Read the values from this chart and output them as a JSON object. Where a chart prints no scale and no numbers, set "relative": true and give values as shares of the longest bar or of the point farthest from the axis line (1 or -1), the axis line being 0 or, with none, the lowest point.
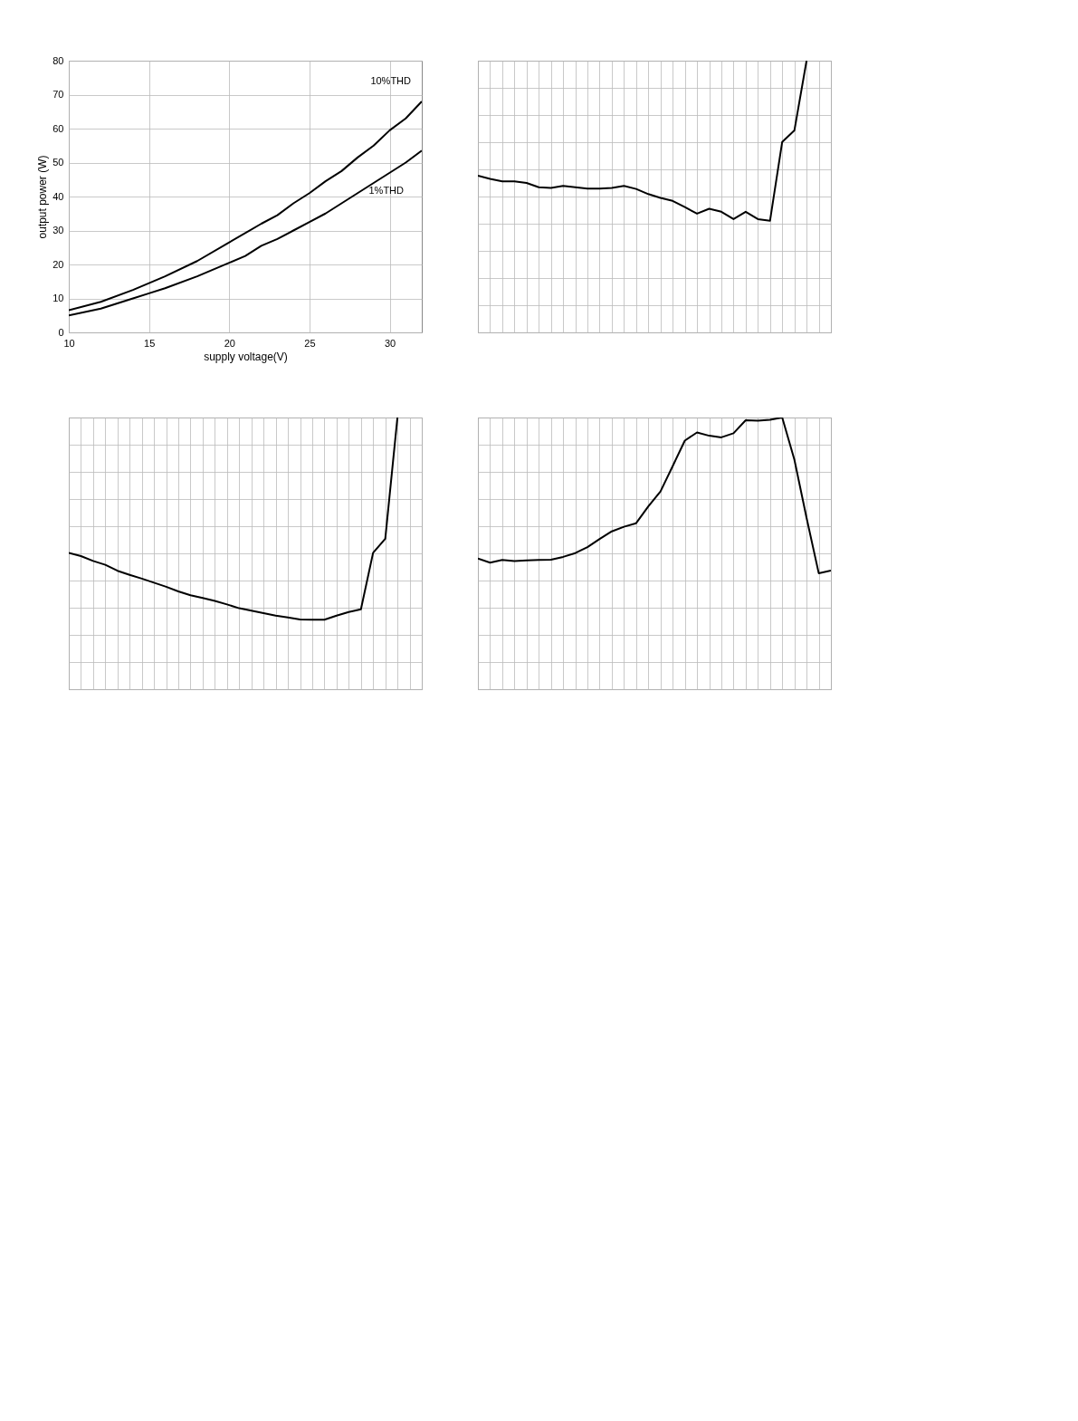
{
  "chart_data": [
    {
      "type": "line",
      "xlabel": "supply voltage(V)",
      "ylabel": "output power (W)",
      "x": [
        10,
        12,
        14,
        15,
        16,
        18,
        20,
        22,
        23,
        24,
        25,
        26,
        27,
        28,
        29,
        30,
        31,
        32
      ],
      "xlim": [
        10,
        32
      ],
      "xticks": [
        10,
        15,
        20,
        25,
        30
      ],
      "ylim": [
        0,
        80
      ],
      "yticks": [
        0,
        10,
        20,
        30,
        40,
        50,
        60,
        70,
        80
      ],
      "grid": true,
      "legend": false,
      "line_style": "solid",
      "marker": "none",
      "series": [
        {
          "name": "10%THD",
          "color": "#000000",
          "values": [
            6.5,
            9,
            12.5,
            14.5,
            16.5,
            21,
            26.5,
            32,
            34.5,
            38,
            41,
            44.5,
            47.5,
            51.5,
            55,
            59.5,
            63,
            68
          ]
        },
        {
          "name": "1%THD",
          "color": "#000000",
          "x": [
            10,
            12,
            14,
            15,
            16,
            18,
            20,
            21,
            22,
            23,
            24,
            25,
            26,
            27,
            28,
            29,
            30,
            31,
            32
          ],
          "values": [
            5,
            7,
            10,
            11.5,
            13,
            16.5,
            20.5,
            22.5,
            25.5,
            27.5,
            30,
            32.5,
            35,
            38,
            41,
            44,
            47,
            50,
            53.5
          ]
        }
      ]
    },
    {
      "type": "line",
      "relative": true,
      "grid": true,
      "tick_labels": false,
      "legend": false,
      "line_style": "solid",
      "marker": "none",
      "categories": [
        null,
        null,
        null,
        null,
        null,
        null,
        null,
        null,
        null,
        null,
        null,
        null,
        null,
        null,
        null,
        null,
        null,
        null,
        null,
        null,
        null,
        null,
        null,
        null,
        null,
        null,
        null,
        null,
        null,
        null
      ],
      "series": [
        {
          "color": "#000000",
          "values": [
            0.577,
            0.565,
            0.556,
            0.556,
            0.55,
            0.534,
            0.532,
            0.539,
            0.534,
            0.529,
            0.529,
            0.532,
            0.539,
            0.528,
            0.509,
            0.495,
            0.484,
            0.461,
            0.437,
            0.455,
            0.444,
            0.417,
            0.444,
            0.417,
            0.411,
            0.701,
            0.743,
            1,
            null,
            null
          ]
        }
      ]
    },
    {
      "type": "line",
      "relative": true,
      "grid": true,
      "tick_labels": false,
      "legend": false,
      "line_style": "solid",
      "marker": "none",
      "categories": [
        null,
        null,
        null,
        null,
        null,
        null,
        null,
        null,
        null,
        null,
        null,
        null,
        null,
        null,
        null,
        null,
        null,
        null,
        null,
        null,
        null,
        null,
        null,
        null,
        null,
        null,
        null,
        null,
        null,
        null
      ],
      "series": [
        {
          "color": "#000000",
          "values": [
            0.502,
            0.49,
            0.472,
            0.458,
            0.436,
            0.421,
            0.407,
            0.392,
            0.377,
            0.36,
            0.346,
            0.336,
            0.325,
            0.312,
            0.298,
            0.289,
            0.28,
            0.271,
            0.264,
            0.257,
            0.256,
            0.256,
            0.271,
            0.284,
            0.294,
            0.502,
            0.554,
            1,
            null,
            null
          ]
        }
      ]
    },
    {
      "type": "line",
      "relative": true,
      "grid": true,
      "tick_labels": false,
      "legend": false,
      "line_style": "solid",
      "marker": "none",
      "categories": [
        null,
        null,
        null,
        null,
        null,
        null,
        null,
        null,
        null,
        null,
        null,
        null,
        null,
        null,
        null,
        null,
        null,
        null,
        null,
        null,
        null,
        null,
        null,
        null,
        null,
        null,
        null,
        null,
        null,
        null
      ],
      "series": [
        {
          "color": "#000000",
          "values": [
            0.481,
            0.466,
            0.476,
            0.472,
            0.474,
            0.476,
            0.477,
            0.487,
            0.501,
            0.523,
            0.553,
            0.581,
            0.598,
            0.611,
            0.673,
            0.728,
            0.821,
            0.915,
            0.945,
            0.933,
            0.927,
            0.942,
            0.99,
            0.988,
            0.992,
            1,
            0.845,
            0.631,
            0.427,
            0.437
          ]
        }
      ]
    }
  ]
}
